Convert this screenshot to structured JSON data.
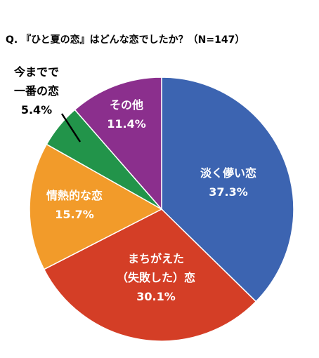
{
  "chart_data": {
    "type": "pie",
    "title": "Q. 『ひと夏の恋』はどんな恋でしたか？（N=147）",
    "slices": [
      {
        "label": [
          "淡く儚い恋"
        ],
        "value": 37.3,
        "display": "37.3%",
        "color": "#3c64b1",
        "text_color": "#ffffff"
      },
      {
        "label": [
          "まちがえた",
          "（失敗した）恋"
        ],
        "value": 30.1,
        "display": "30.1%",
        "color": "#d43e26",
        "text_color": "#ffffff"
      },
      {
        "label": [
          "情熱的な恋"
        ],
        "value": 15.7,
        "display": "15.7%",
        "color": "#f29b2a",
        "text_color": "#ffffff"
      },
      {
        "label": [
          "今までで",
          "一番の恋"
        ],
        "value": 5.4,
        "display": "5.4%",
        "color": "#22944a",
        "text_color": "#000000"
      },
      {
        "label": [
          "その他"
        ],
        "value": 11.4,
        "display": "11.4%",
        "color": "#8b2f8d",
        "text_color": "#ffffff"
      }
    ],
    "start": "12 o'clock",
    "direction": "clockwise"
  }
}
